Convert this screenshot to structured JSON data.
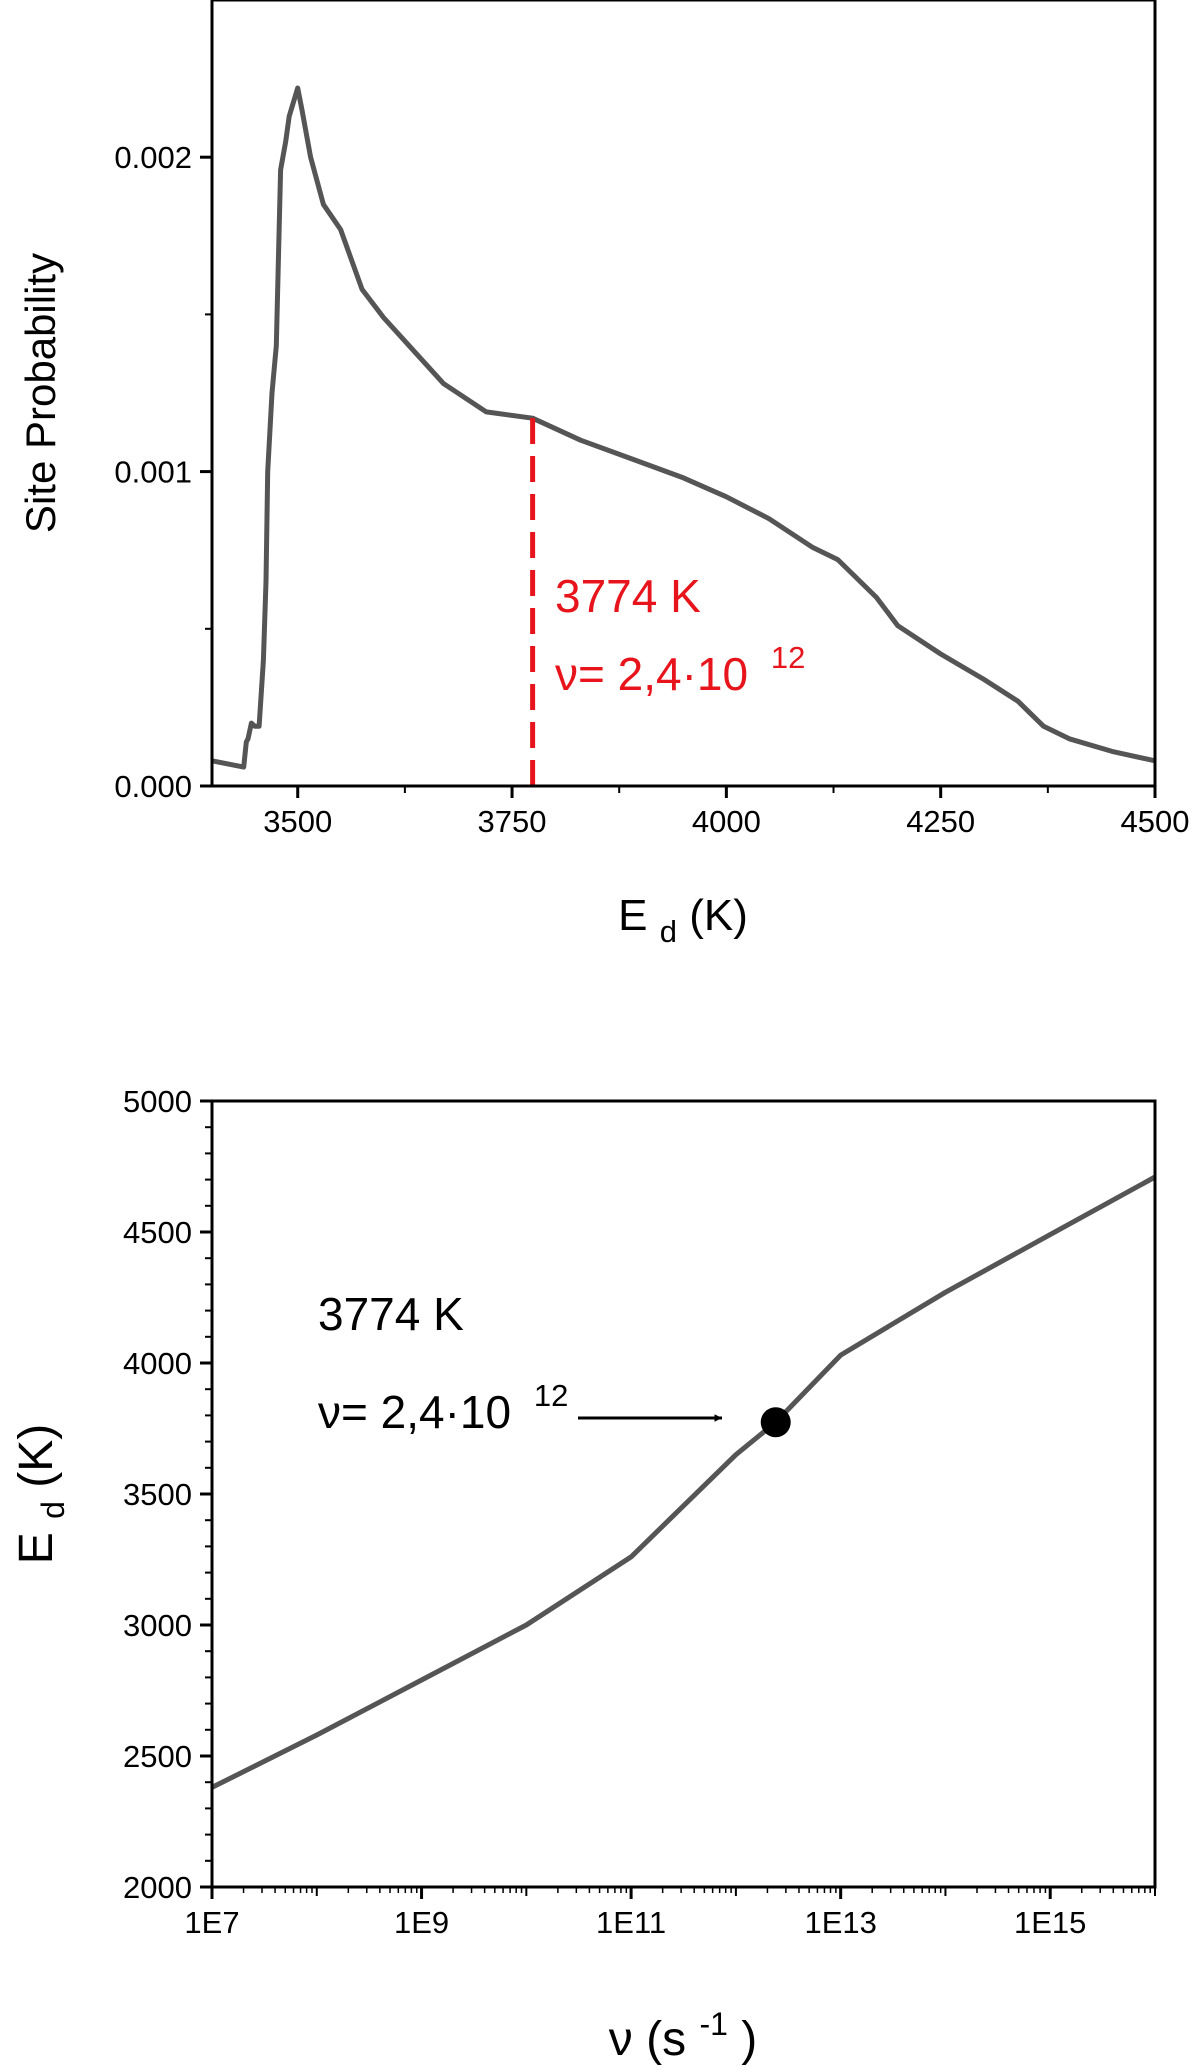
{
  "chart_data": [
    {
      "type": "line",
      "xlabel_main": "E",
      "xlabel_sub": "d",
      "xlabel_rest": "(K)",
      "ylabel": "Site Probability",
      "xlim": [
        3400,
        4500
      ],
      "ylim": [
        0,
        0.0025
      ],
      "xticks": [
        3500,
        3750,
        4000,
        4250,
        4500
      ],
      "xtick_labels": [
        "3500",
        "3750",
        "4000",
        "4250",
        "4500"
      ],
      "yticks": [
        0,
        0.001,
        0.002
      ],
      "ytick_labels": [
        "0.000",
        "0.001",
        "0.002"
      ],
      "line_color": "#555555",
      "series": [
        {
          "x": [
            3400,
            3437,
            3440,
            3442,
            3446,
            3450,
            3455,
            3460,
            3463,
            3465,
            3470,
            3475,
            3480,
            3486,
            3490,
            3500,
            3505,
            3515,
            3530,
            3550,
            3575,
            3600,
            3630,
            3670,
            3720,
            3774,
            3830,
            3890,
            3950,
            4000,
            4050,
            4100,
            4130,
            4175,
            4200,
            4250,
            4300,
            4340,
            4370,
            4400,
            4450,
            4500
          ],
          "y": [
            8e-05,
            6e-05,
            0.00014,
            0.00015,
            0.0002,
            0.00019,
            0.00019,
            0.0004,
            0.00065,
            0.001,
            0.00125,
            0.0014,
            0.00196,
            0.00205,
            0.00213,
            0.00222,
            0.00215,
            0.002,
            0.00185,
            0.00177,
            0.00158,
            0.00149,
            0.0014,
            0.00128,
            0.00119,
            0.00117,
            0.0011,
            0.00104,
            0.00098,
            0.00092,
            0.00085,
            0.00076,
            0.00072,
            0.0006,
            0.00051,
            0.00042,
            0.00034,
            0.00027,
            0.00019,
            0.00015,
            0.00011,
            8e-05
          ]
        }
      ],
      "marker_line": {
        "x": 3774,
        "color": "#e8141c",
        "style": "dashed"
      },
      "annotation": {
        "line1": "3774 K",
        "line2": "ν= 2,4·10",
        "sup": "12",
        "color": "#e8141c"
      }
    },
    {
      "type": "line",
      "xlabel_main": "ν (s",
      "xlabel_sup": "-1",
      "xlabel_rest": ")",
      "ylabel_main": "E",
      "ylabel_sub": "d",
      "ylabel_rest": "(K)",
      "xscale": "log",
      "xlim": [
        10000000,
        10000000000000000
      ],
      "ylim": [
        2000,
        5000
      ],
      "xticks": [
        10000000,
        1000000000,
        100000000000,
        10000000000000,
        1000000000000000
      ],
      "xtick_labels": [
        "1E7",
        "1E9",
        "1E11",
        "1E13",
        "1E15"
      ],
      "yticks": [
        2000,
        2500,
        3000,
        3500,
        4000,
        4500,
        5000
      ],
      "ytick_labels": [
        "2000",
        "2500",
        "3000",
        "3500",
        "4000",
        "4500",
        "5000"
      ],
      "line_color": "#555555",
      "series": [
        {
          "x": [
            10000000,
            100000000,
            1000000000,
            10000000000,
            100000000000,
            1000000000000,
            2400000000000,
            10000000000000,
            100000000000000,
            1000000000000000,
            10000000000000000
          ],
          "y": [
            2380,
            2580,
            2790,
            3000,
            3260,
            3650,
            3774,
            4030,
            4270,
            4490,
            4710
          ]
        }
      ],
      "highlight_point": {
        "x": 2400000000000,
        "y": 3774
      },
      "annotation": {
        "line1": "3774 K",
        "line2": "ν= 2,4·10",
        "sup": "12",
        "color": "#000000"
      }
    }
  ]
}
